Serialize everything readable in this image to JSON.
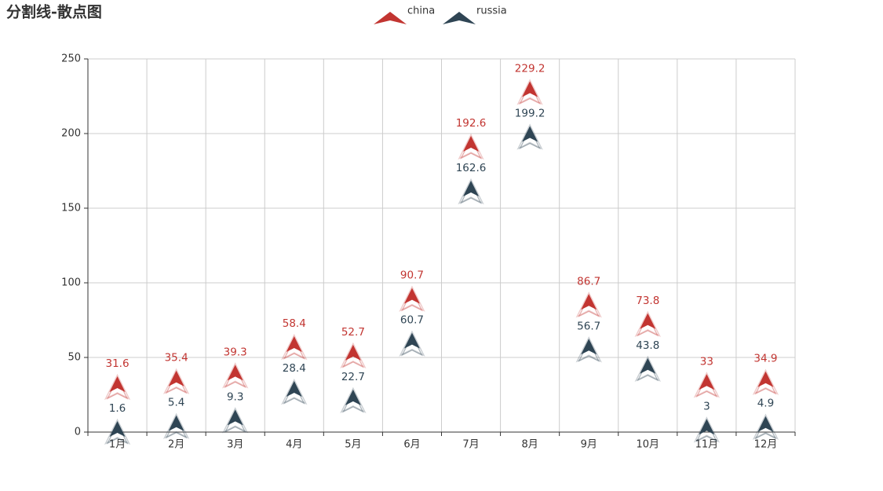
{
  "chart_data": {
    "type": "scatter",
    "title": "分割线-散点图",
    "categories": [
      "1月",
      "2月",
      "3月",
      "4月",
      "5月",
      "6月",
      "7月",
      "8月",
      "9月",
      "10月",
      "11月",
      "12月"
    ],
    "series": [
      {
        "name": "china",
        "color": "#c23531",
        "values": [
          31.6,
          35.4,
          39.3,
          58.4,
          52.7,
          90.7,
          192.6,
          229.2,
          86.7,
          73.8,
          33,
          34.9
        ]
      },
      {
        "name": "russia",
        "color": "#2f4554",
        "values": [
          1.6,
          5.4,
          9.3,
          28.4,
          22.7,
          60.7,
          162.6,
          199.2,
          56.7,
          43.8,
          3,
          4.9
        ]
      }
    ],
    "ylim": [
      0,
      250
    ],
    "yticks": [
      0,
      50,
      100,
      150,
      200,
      250
    ],
    "grid": true
  }
}
